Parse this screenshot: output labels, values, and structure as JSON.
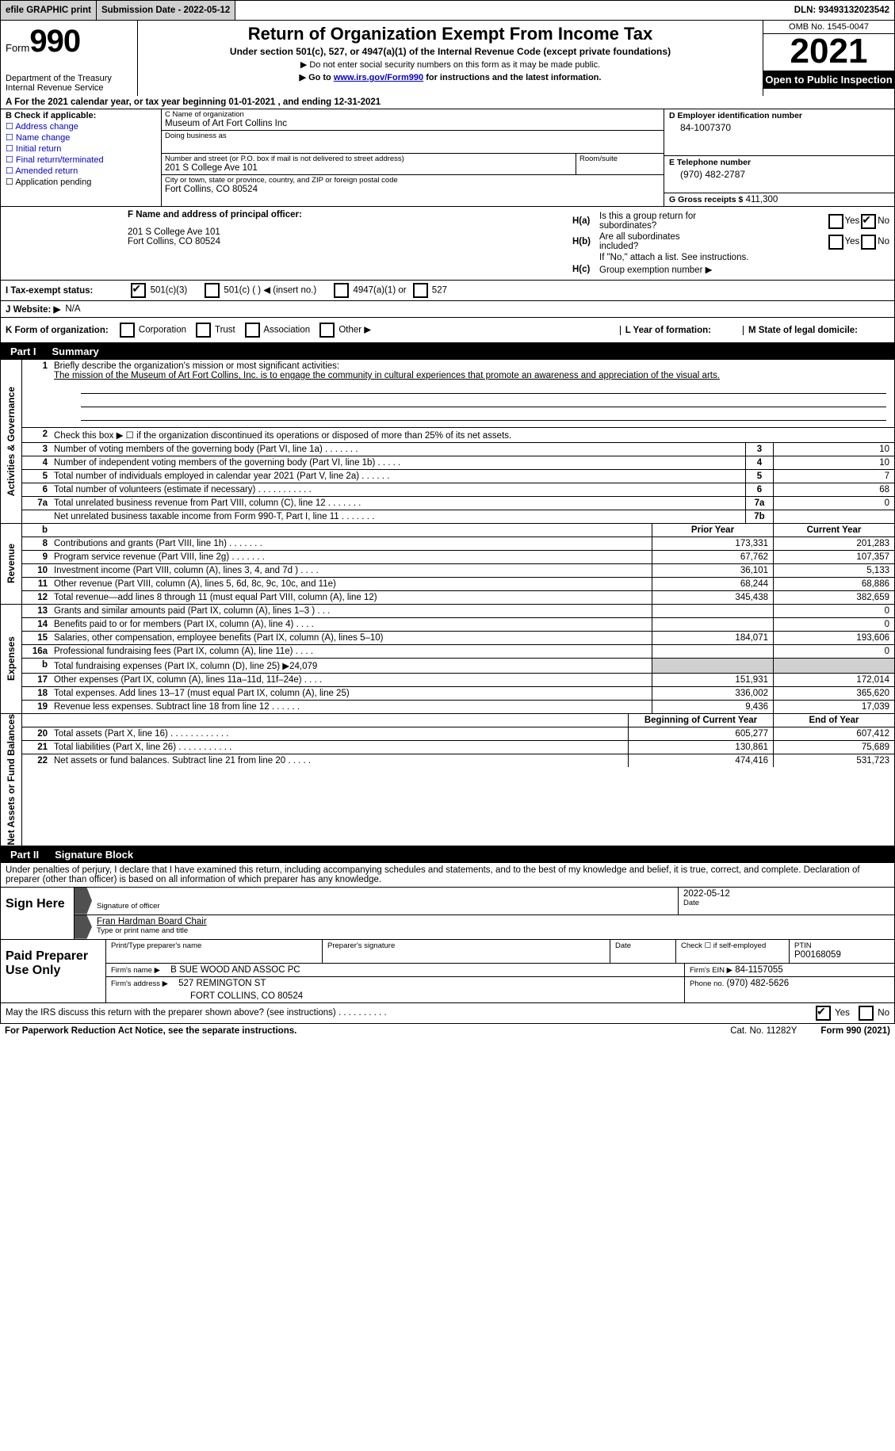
{
  "topbar": {
    "efile": "efile GRAPHIC print",
    "sub_label": "Submission Date - 2022-05-12",
    "dln": "DLN: 93493132023542"
  },
  "header": {
    "form_word": "Form",
    "form_num": "990",
    "dept": "Department of the Treasury",
    "irs": "Internal Revenue Service",
    "title": "Return of Organization Exempt From Income Tax",
    "subtitle": "Under section 501(c), 527, or 4947(a)(1) of the Internal Revenue Code (except private foundations)",
    "note1": "▶ Do not enter social security numbers on this form as it may be made public.",
    "note2_pre": "▶ Go to ",
    "note2_link": "www.irs.gov/Form990",
    "note2_post": " for instructions and the latest information.",
    "omb": "OMB No. 1545-0047",
    "year": "2021",
    "open": "Open to Public Inspection"
  },
  "lineA": "A For the 2021 calendar year, or tax year beginning 01-01-2021    , and ending 12-31-2021",
  "colB": {
    "title": "B Check if applicable:",
    "opts": [
      "Address change",
      "Name change",
      "Initial return",
      "Final return/terminated",
      "Amended return",
      "Application pending"
    ]
  },
  "colC": {
    "name_lbl": "C Name of organization",
    "name": "Museum of Art Fort Collins Inc",
    "dba_lbl": "Doing business as",
    "addr_lbl": "Number and street (or P.O. box if mail is not delivered to street address)",
    "room_lbl": "Room/suite",
    "addr": "201 S College Ave 101",
    "city_lbl": "City or town, state or province, country, and ZIP or foreign postal code",
    "city": "Fort Collins, CO  80524"
  },
  "colD": {
    "ein_lbl": "D Employer identification number",
    "ein": "84-1007370",
    "tel_lbl": "E Telephone number",
    "tel": "(970) 482-2787",
    "gross_lbl": "G Gross receipts $",
    "gross": "411,300"
  },
  "f": {
    "lbl": "F  Name and address of principal officer:",
    "l1": "201 S College Ave 101",
    "l2": "Fort Collins, CO  80524"
  },
  "h": {
    "a1": "Is this a group return for",
    "a2": "subordinates?",
    "b1": "Are all subordinates",
    "b2": "included?",
    "note": "If \"No,\" attach a list. See instructions.",
    "c": "Group exemption number ▶"
  },
  "i": {
    "lbl": "I  Tax-exempt status:",
    "o1": "501(c)(3)",
    "o2": "501(c) (  ) ◀ (insert no.)",
    "o3": "4947(a)(1) or",
    "o4": "527"
  },
  "j": {
    "lbl": "J  Website: ▶",
    "val": "N/A"
  },
  "k": {
    "lbl": "K Form of organization:",
    "o1": "Corporation",
    "o2": "Trust",
    "o3": "Association",
    "o4": "Other ▶"
  },
  "l": "L Year of formation:",
  "m": "M State of legal domicile:",
  "parts": {
    "p1_tag": "Part I",
    "p1_title": "Summary",
    "p2_tag": "Part II",
    "p2_title": "Signature Block"
  },
  "vtabs": {
    "gov": "Activities & Governance",
    "rev": "Revenue",
    "exp": "Expenses",
    "net": "Net Assets or Fund Balances"
  },
  "summary": {
    "l1_desc": "Briefly describe the organization's mission or most significant activities:",
    "l1_mission": "The mission of the Museum of Art Fort Collins, Inc. is to engage the community in cultural experiences that promote an awareness and appreciation of the visual arts.",
    "l2_desc": "Check this box ▶ ☐  if the organization discontinued its operations or disposed of more than 25% of its net assets.",
    "rows": [
      {
        "n": "3",
        "d": "Number of voting members of the governing body (Part VI, line 1a)   .    .    .    .    .    .    .",
        "b": "3",
        "v": "10"
      },
      {
        "n": "4",
        "d": "Number of independent voting members of the governing body (Part VI, line 1b)  .    .    .    .    .",
        "b": "4",
        "v": "10"
      },
      {
        "n": "5",
        "d": "Total number of individuals employed in calendar year 2021 (Part V, line 2a)  .    .    .    .    .    .",
        "b": "5",
        "v": "7"
      },
      {
        "n": "6",
        "d": "Total number of volunteers (estimate if necessary)    .    .    .    .    .    .    .    .    .    .    .",
        "b": "6",
        "v": "68"
      },
      {
        "n": "7a",
        "d": "Total unrelated business revenue from Part VIII, column (C), line 12   .    .    .    .    .    .    .",
        "b": "7a",
        "v": "0"
      },
      {
        "n": "",
        "d": "Net unrelated business taxable income from Form 990-T, Part I, line 11  .    .    .    .    .    .    .",
        "b": "7b",
        "v": ""
      }
    ],
    "hdr_prior": "Prior Year",
    "hdr_curr": "Current Year",
    "rev": [
      {
        "n": "8",
        "d": "Contributions and grants (Part VIII, line 1h)   .    .    .    .    .    .    .",
        "p": "173,331",
        "c": "201,283"
      },
      {
        "n": "9",
        "d": "Program service revenue (Part VIII, line 2g)   .    .    .    .    .    .    .",
        "p": "67,762",
        "c": "107,357"
      },
      {
        "n": "10",
        "d": "Investment income (Part VIII, column (A), lines 3, 4, and 7d )   .    .    .    .",
        "p": "36,101",
        "c": "5,133"
      },
      {
        "n": "11",
        "d": "Other revenue (Part VIII, column (A), lines 5, 6d, 8c, 9c, 10c, and 11e)",
        "p": "68,244",
        "c": "68,886"
      },
      {
        "n": "12",
        "d": "Total revenue—add lines 8 through 11 (must equal Part VIII, column (A), line 12)",
        "p": "345,438",
        "c": "382,659"
      }
    ],
    "exp": [
      {
        "n": "13",
        "d": "Grants and similar amounts paid (Part IX, column (A), lines 1–3 )  .    .    .",
        "p": "",
        "c": "0"
      },
      {
        "n": "14",
        "d": "Benefits paid to or for members (Part IX, column (A), line 4)  .    .    .    .",
        "p": "",
        "c": "0"
      },
      {
        "n": "15",
        "d": "Salaries, other compensation, employee benefits (Part IX, column (A), lines 5–10)",
        "p": "184,071",
        "c": "193,606"
      },
      {
        "n": "16a",
        "d": "Professional fundraising fees (Part IX, column (A), line 11e)  .    .    .    .",
        "p": "",
        "c": "0"
      },
      {
        "n": "b",
        "d": "Total fundraising expenses (Part IX, column (D), line 25) ▶24,079",
        "p": "shade",
        "c": "shade"
      },
      {
        "n": "17",
        "d": "Other expenses (Part IX, column (A), lines 11a–11d, 11f–24e)  .    .    .    .",
        "p": "151,931",
        "c": "172,014"
      },
      {
        "n": "18",
        "d": "Total expenses. Add lines 13–17 (must equal Part IX, column (A), line 25)",
        "p": "336,002",
        "c": "365,620"
      },
      {
        "n": "19",
        "d": "Revenue less expenses. Subtract line 18 from line 12  .    .    .    .    .    .",
        "p": "9,436",
        "c": "17,039"
      }
    ],
    "hdr_beg": "Beginning of Current Year",
    "hdr_end": "End of Year",
    "net": [
      {
        "n": "20",
        "d": "Total assets (Part X, line 16)  .    .    .    .    .    .    .    .    .    .    .    .",
        "p": "605,277",
        "c": "607,412"
      },
      {
        "n": "21",
        "d": "Total liabilities (Part X, line 26)  .    .    .    .    .    .    .    .    .    .    .",
        "p": "130,861",
        "c": "75,689"
      },
      {
        "n": "22",
        "d": "Net assets or fund balances. Subtract line 21 from line 20  .    .    .    .    .",
        "p": "474,416",
        "c": "531,723"
      }
    ]
  },
  "sig": {
    "decl": "Under penalties of perjury, I declare that I have examined this return, including accompanying schedules and statements, and to the best of my knowledge and belief, it is true, correct, and complete. Declaration of preparer (other than officer) is based on all information of which preparer has any knowledge.",
    "sign_here": "Sign Here",
    "sig_officer": "Signature of officer",
    "date_val": "2022-05-12",
    "date_lbl": "Date",
    "name_val": "Fran Hardman  Board Chair",
    "name_lbl": "Type or print name and title",
    "paid": "Paid Preparer Use Only",
    "prep_name_lbl": "Print/Type preparer's name",
    "prep_sig_lbl": "Preparer's signature",
    "check_self": "Check ☐ if self-employed",
    "ptin_lbl": "PTIN",
    "ptin": "P00168059",
    "firm_name_lbl": "Firm's name    ▶",
    "firm_name": "B SUE WOOD AND ASSOC PC",
    "firm_ein_lbl": "Firm's EIN ▶",
    "firm_ein": "84-1157055",
    "firm_addr_lbl": "Firm's address ▶",
    "firm_addr1": "527 REMINGTON ST",
    "firm_addr2": "FORT COLLINS, CO  80524",
    "phone_lbl": "Phone no.",
    "phone": "(970) 482-5626"
  },
  "footer": {
    "discuss": "May the IRS discuss this return with the preparer shown above? (see instructions)  .    .    .    .    .    .    .    .    .    .",
    "yes": "Yes",
    "no": "No",
    "paperwork": "For Paperwork Reduction Act Notice, see the separate instructions.",
    "cat": "Cat. No. 11282Y",
    "form": "Form 990 (2021)"
  }
}
